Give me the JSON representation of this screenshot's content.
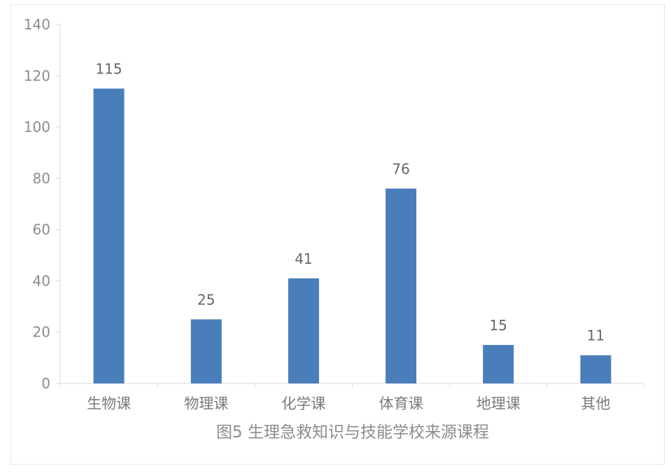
{
  "chart_data": {
    "type": "bar",
    "title": "图5 生理急救知识与技能学校来源课程",
    "xlabel": "",
    "ylabel": "",
    "categories": [
      "生物课",
      "物理课",
      "化学课",
      "体育课",
      "地理课",
      "其他"
    ],
    "values": [
      115,
      25,
      41,
      76,
      15,
      11
    ],
    "ylim": [
      0,
      140
    ],
    "yticks": [
      0,
      20,
      40,
      60,
      80,
      100,
      120,
      140
    ],
    "data_labels": [
      "115",
      "25",
      "41",
      "76",
      "15",
      "11"
    ],
    "grid": false,
    "legend": "none",
    "colors": {
      "bar": "#4a7ebb",
      "axis": "#d9d9d9",
      "tick_text": "#8c8c8c",
      "category_text": "#7a7a7a",
      "data_label_text": "#666666",
      "title_text": "#8c8c8c"
    }
  }
}
